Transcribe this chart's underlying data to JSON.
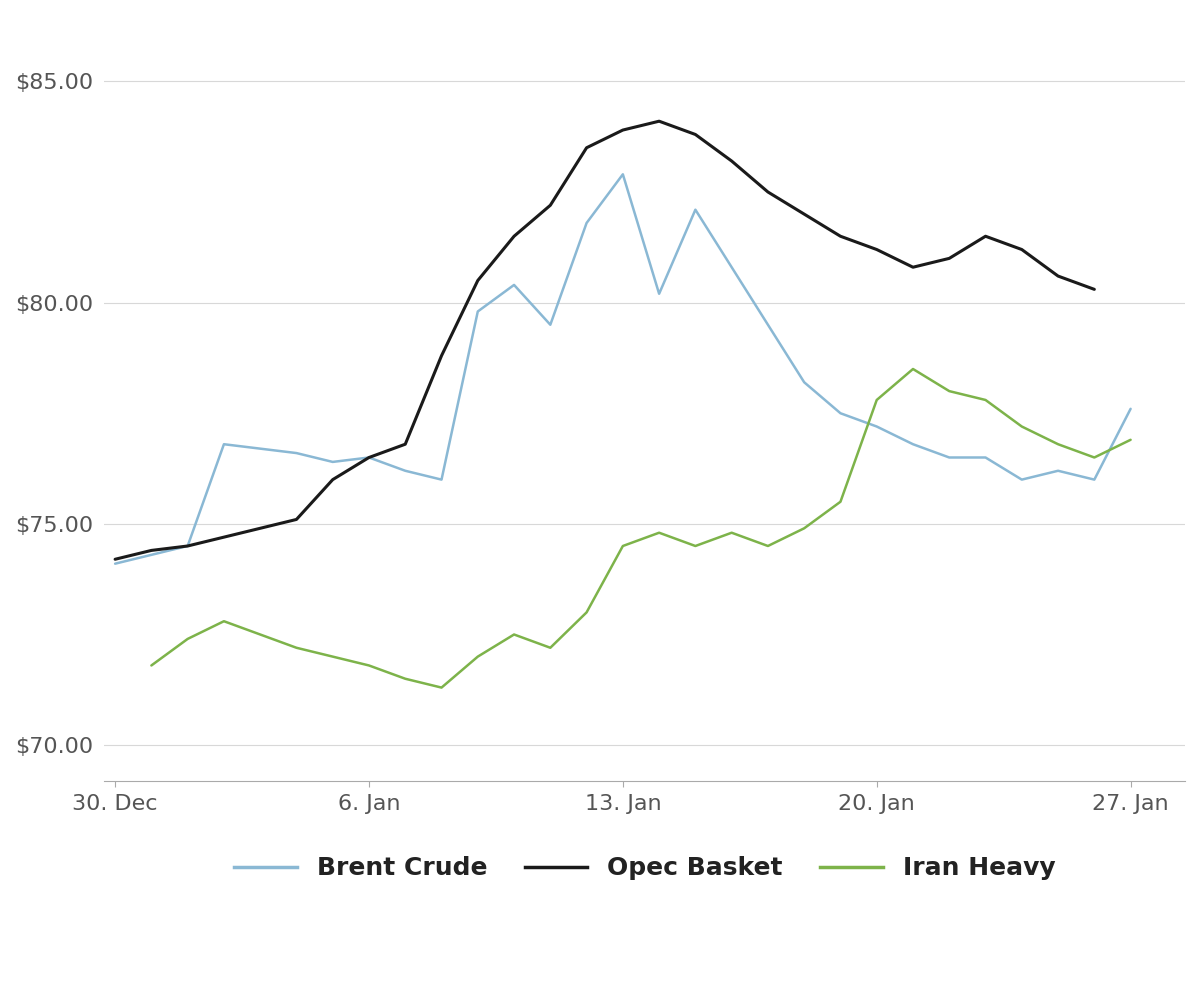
{
  "brent_crude": {
    "x": [
      0,
      1,
      2,
      3,
      4,
      5,
      6,
      7,
      8,
      9,
      10,
      11,
      12,
      13,
      14,
      15,
      16,
      17,
      18,
      19,
      20,
      21,
      22,
      23,
      24,
      25,
      26,
      27,
      28
    ],
    "y": [
      74.1,
      74.3,
      74.5,
      76.8,
      76.7,
      76.6,
      76.4,
      76.5,
      76.2,
      76.0,
      79.8,
      80.4,
      79.5,
      81.8,
      82.9,
      80.2,
      82.1,
      80.8,
      79.5,
      78.2,
      77.5,
      77.2,
      76.8,
      76.5,
      76.5,
      76.0,
      76.2,
      76.0,
      77.6
    ],
    "color": "#8ab8d4",
    "linewidth": 1.8,
    "label": "Brent Crude"
  },
  "opec_basket": {
    "x": [
      0,
      1,
      2,
      3,
      4,
      5,
      6,
      7,
      8,
      9,
      10,
      11,
      12,
      13,
      14,
      15,
      16,
      17,
      18,
      19,
      20,
      21,
      22,
      23,
      24,
      25,
      26,
      27
    ],
    "y": [
      74.2,
      74.4,
      74.5,
      74.7,
      74.9,
      75.1,
      76.0,
      76.5,
      76.8,
      78.8,
      80.5,
      81.5,
      82.2,
      83.5,
      83.9,
      84.1,
      83.8,
      83.2,
      82.5,
      82.0,
      81.5,
      81.2,
      80.8,
      81.0,
      81.5,
      81.2,
      80.6,
      80.3
    ],
    "color": "#1a1a1a",
    "linewidth": 2.2,
    "label": "Opec Basket"
  },
  "iran_heavy": {
    "x": [
      1,
      2,
      3,
      4,
      5,
      6,
      7,
      8,
      9,
      10,
      11,
      12,
      13,
      14,
      15,
      16,
      17,
      18,
      19,
      20,
      21,
      22,
      23,
      24,
      25,
      26,
      27,
      28
    ],
    "y": [
      71.8,
      72.4,
      72.8,
      72.5,
      72.2,
      72.0,
      71.8,
      71.5,
      71.3,
      72.0,
      72.5,
      72.2,
      73.0,
      74.5,
      74.8,
      74.5,
      74.8,
      74.5,
      74.9,
      75.5,
      77.8,
      78.5,
      78.0,
      77.8,
      77.2,
      76.8,
      76.5,
      76.9
    ],
    "color": "#7db34a",
    "linewidth": 1.8,
    "label": "Iran Heavy"
  },
  "x_ticks": [
    0,
    7,
    14,
    21,
    28
  ],
  "x_tick_labels": [
    "30. Dec",
    "6. Jan",
    "13. Jan",
    "20. Jan",
    "27. Jan"
  ],
  "y_ticks": [
    70,
    75,
    80,
    85
  ],
  "y_tick_labels": [
    "$70.00",
    "$75.00",
    "$80.00",
    "$85.00"
  ],
  "ylim": [
    69.2,
    86.5
  ],
  "xlim": [
    -0.3,
    29.5
  ],
  "background_color": "#ffffff",
  "grid_color": "#d8d8d8",
  "spine_color": "#aaaaaa",
  "tick_label_color": "#555555"
}
